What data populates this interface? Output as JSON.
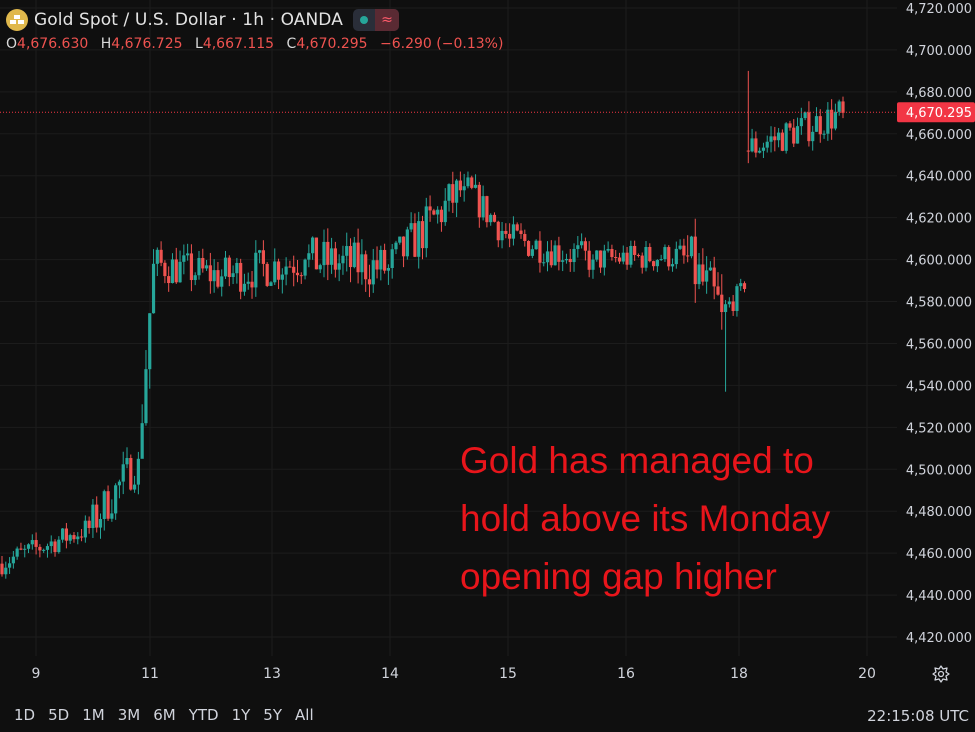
{
  "header": {
    "title": "Gold Spot / U.S. Dollar · 1h · OANDA",
    "ohlc": [
      {
        "key": "O",
        "value": "4,676.630"
      },
      {
        "key": "H",
        "value": "4,676.725"
      },
      {
        "key": "L",
        "value": "4,667.115"
      },
      {
        "key": "C",
        "value": "4,670.295"
      }
    ],
    "change": "−6.290 (−0.13%)"
  },
  "annotation": {
    "line1": "Gold has managed to",
    "line2": "hold above its Monday",
    "line3": "opening gap higher"
  },
  "ranges": [
    "1D",
    "5D",
    "1M",
    "3M",
    "6M",
    "YTD",
    "1Y",
    "5Y",
    "All"
  ],
  "clock": "22:15:08 UTC",
  "colors": {
    "up": "#26a69a",
    "down": "#ef5350",
    "background": "#0f0f0f",
    "annotation": "#e8151b",
    "price_tag": "#f23645"
  },
  "chart_data": {
    "type": "candlestick",
    "ylim": [
      4410,
      4720
    ],
    "y_ticks": [
      "4,420.000",
      "4,440.000",
      "4,460.000",
      "4,480.000",
      "4,500.000",
      "4,520.000",
      "4,540.000",
      "4,560.000",
      "4,580.000",
      "4,600.000",
      "4,620.000",
      "4,640.000",
      "4,660.000",
      "4,680.000",
      "4,700.000",
      "4,720.000"
    ],
    "y_tick_values": [
      4420,
      4440,
      4460,
      4480,
      4500,
      4520,
      4540,
      4560,
      4580,
      4600,
      4620,
      4640,
      4660,
      4680,
      4700,
      4720
    ],
    "x_ticks": [
      "9",
      "11",
      "13",
      "14",
      "15",
      "16",
      "18",
      "20"
    ],
    "last_price": 4670.295,
    "last_price_label": "4,670.295",
    "segments": [
      {
        "day": "9",
        "start": 4455,
        "end": 4472,
        "lo": 4447,
        "hi": 4480,
        "bars": 24
      },
      {
        "day": "10",
        "start": 4472,
        "end": 4505,
        "lo": 4462,
        "hi": 4518,
        "bars": 13
      },
      {
        "day": "11",
        "start": 4505,
        "end": 4598,
        "lo": 4520,
        "hi": 4605,
        "bars": 4
      },
      {
        "day": "11",
        "start": 4598,
        "end": 4592,
        "lo": 4562,
        "hi": 4612,
        "bars": 18
      },
      {
        "day": "12",
        "start": 4592,
        "end": 4600,
        "lo": 4575,
        "hi": 4630,
        "bars": 22
      },
      {
        "day": "13",
        "start": 4600,
        "end": 4596,
        "lo": 4572,
        "hi": 4635,
        "bars": 22
      },
      {
        "day": "14",
        "start": 4596,
        "end": 4635,
        "lo": 4580,
        "hi": 4642,
        "bars": 20
      },
      {
        "day": "14",
        "start": 4635,
        "end": 4610,
        "lo": 4598,
        "hi": 4642,
        "bars": 12
      },
      {
        "day": "15",
        "start": 4610,
        "end": 4600,
        "lo": 4580,
        "hi": 4625,
        "bars": 22
      },
      {
        "day": "16",
        "start": 4600,
        "end": 4602,
        "lo": 4584,
        "hi": 4621,
        "bars": 24
      },
      {
        "day": "17",
        "start": 4602,
        "end": 4575,
        "lo": 4537,
        "hi": 4620,
        "bars": 10
      },
      {
        "day": "17",
        "start": 4575,
        "end": 4586,
        "lo": 4568,
        "hi": 4598,
        "bars": 6
      },
      {
        "day": "18",
        "start": 4652,
        "end": 4670,
        "lo": 4645,
        "hi": 4690,
        "bars": 26
      }
    ]
  }
}
